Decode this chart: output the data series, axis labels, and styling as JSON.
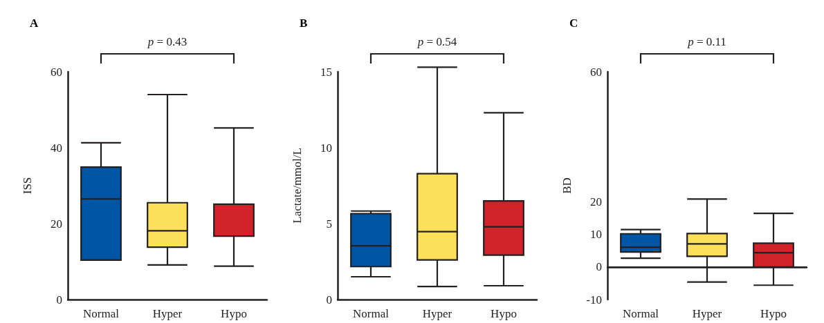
{
  "chart_data": [
    {
      "type": "box",
      "title": "A",
      "ylabel": "ISS",
      "categories": [
        "Normal",
        "Hyper",
        "Hypo"
      ],
      "colors": [
        "#0055a5",
        "#fce05a",
        "#d2232a"
      ],
      "boxes": [
        {
          "low": 10.4,
          "q1": 10.4,
          "median": 26.5,
          "q3": 34.9,
          "high": 41.3
        },
        {
          "low": 9.1,
          "q1": 13.8,
          "median": 18.1,
          "q3": 25.5,
          "high": 54
        },
        {
          "low": 8.8,
          "q1": 16.7,
          "median": 16.7,
          "q3": 25.1,
          "high": 45.2
        }
      ],
      "ylim": [
        0,
        60
      ],
      "yticks": [
        0,
        20,
        40,
        60
      ],
      "grid": false,
      "annotations": [
        "p = 0.43"
      ]
    },
    {
      "type": "box",
      "title": "B",
      "ylabel": "Lactate/mmol/L",
      "categories": [
        "Normal",
        "Hyper",
        "Hypo"
      ],
      "colors": [
        "#0055a5",
        "#fce05a",
        "#d2232a"
      ],
      "boxes": [
        {
          "low": 1.5,
          "q1": 2.17,
          "median": 3.54,
          "q3": 5.66,
          "high": 5.83
        },
        {
          "low": 0.86,
          "q1": 2.61,
          "median": 4.47,
          "q3": 8.29,
          "high": 15.3
        },
        {
          "low": 0.91,
          "q1": 2.93,
          "median": 4.79,
          "q3": 6.49,
          "high": 12.3
        }
      ],
      "ylim": [
        0,
        15
      ],
      "yticks": [
        0,
        5,
        10,
        15
      ],
      "grid": false,
      "annotations": [
        "p = 0.54"
      ]
    },
    {
      "type": "box",
      "title": "C",
      "ylabel": "BD",
      "categories": [
        "Normal",
        "Hyper",
        "Hypo"
      ],
      "colors": [
        "#0055a5",
        "#fce05a",
        "#d2232a"
      ],
      "boxes": [
        {
          "low": 2.7,
          "q1": 4.6,
          "median": 6.1,
          "q3": 10.2,
          "high": 11.5
        },
        {
          "low": -4.6,
          "q1": 3.3,
          "median": 7.1,
          "q3": 10.3,
          "high": 20.9
        },
        {
          "low": -5.6,
          "q1": 0,
          "median": 4.4,
          "q3": 7.3,
          "high": 16.5
        }
      ],
      "ylim": [
        -10,
        60
      ],
      "yticks": [
        -10,
        0,
        10,
        20,
        60
      ],
      "grid": false,
      "ref_lines": [
        {
          "axis": "y",
          "value": 0,
          "color": "#231f20"
        }
      ],
      "annotations": [
        "p = 0.11"
      ]
    }
  ]
}
